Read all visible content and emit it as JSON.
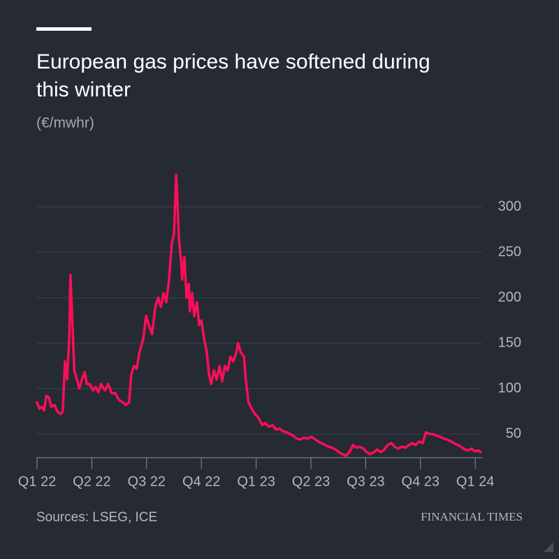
{
  "chart_data": {
    "type": "line",
    "title": [
      "European gas prices have softened during",
      "this winter"
    ],
    "subtitle": "(€/mwhr)",
    "source": "Sources: LSEG, ICE",
    "brand": "FINANCIAL TIMES",
    "x": [
      0,
      0.04,
      0.09,
      0.13,
      0.17,
      0.22,
      0.26,
      0.32,
      0.37,
      0.43,
      0.47,
      0.51,
      0.55,
      0.59,
      0.61,
      0.64,
      0.68,
      0.73,
      0.77,
      0.82,
      0.87,
      0.91,
      0.96,
      1.02,
      1.07,
      1.12,
      1.17,
      1.24,
      1.3,
      1.36,
      1.43,
      1.49,
      1.56,
      1.62,
      1.68,
      1.72,
      1.77,
      1.82,
      1.87,
      1.94,
      1.99,
      2.04,
      2.1,
      2.16,
      2.21,
      2.26,
      2.31,
      2.36,
      2.41,
      2.46,
      2.5,
      2.54,
      2.56,
      2.59,
      2.63,
      2.65,
      2.69,
      2.73,
      2.77,
      2.79,
      2.83,
      2.87,
      2.92,
      2.96,
      3.0,
      3.05,
      3.1,
      3.14,
      3.18,
      3.23,
      3.28,
      3.33,
      3.38,
      3.43,
      3.48,
      3.53,
      3.58,
      3.64,
      3.67,
      3.72,
      3.78,
      3.81,
      3.86,
      3.92,
      3.98,
      4.04,
      4.11,
      4.17,
      4.23,
      4.3,
      4.36,
      4.43,
      4.49,
      4.55,
      4.62,
      4.68,
      4.74,
      4.81,
      4.87,
      4.94,
      5.0,
      5.06,
      5.13,
      5.19,
      5.26,
      5.32,
      5.38,
      5.45,
      5.51,
      5.57,
      5.64,
      5.7,
      5.77,
      5.83,
      5.89,
      5.96,
      6.02,
      6.08,
      6.15,
      6.21,
      6.28,
      6.34,
      6.4,
      6.47,
      6.53,
      6.59,
      6.66,
      6.72,
      6.79,
      6.85,
      6.91,
      6.98,
      7.04,
      7.1,
      7.17,
      7.23,
      7.3,
      7.36,
      7.42,
      7.49,
      7.55,
      7.61,
      7.68,
      7.74,
      7.81,
      7.87,
      7.93,
      8.0,
      8.06,
      8.1
    ],
    "series": [
      {
        "name": "European gas price",
        "color": "#ff0e58",
        "values": [
          85,
          78,
          80,
          76,
          92,
          90,
          80,
          82,
          75,
          72,
          75,
          130,
          110,
          160,
          225,
          180,
          120,
          110,
          100,
          110,
          118,
          105,
          105,
          98,
          102,
          96,
          105,
          98,
          105,
          95,
          95,
          88,
          85,
          82,
          85,
          115,
          125,
          122,
          140,
          155,
          180,
          170,
          160,
          190,
          200,
          190,
          205,
          195,
          220,
          260,
          270,
          335,
          310,
          265,
          240,
          220,
          245,
          200,
          215,
          185,
          205,
          180,
          195,
          170,
          175,
          155,
          140,
          115,
          105,
          120,
          110,
          125,
          108,
          125,
          120,
          135,
          130,
          140,
          150,
          140,
          135,
          110,
          85,
          78,
          72,
          68,
          60,
          62,
          58,
          60,
          55,
          56,
          53,
          52,
          50,
          48,
          45,
          44,
          46,
          45,
          47,
          45,
          42,
          40,
          38,
          36,
          35,
          33,
          30,
          28,
          26,
          30,
          38,
          35,
          36,
          34,
          30,
          28,
          30,
          33,
          30,
          33,
          38,
          40,
          36,
          34,
          36,
          35,
          38,
          40,
          38,
          42,
          40,
          52,
          50,
          50,
          48,
          47,
          45,
          44,
          42,
          40,
          38,
          36,
          33,
          32,
          34,
          31,
          32,
          30
        ]
      }
    ],
    "xlim": [
      0,
      8.1
    ],
    "xticks": [
      {
        "value": 0,
        "label": "Q1 22"
      },
      {
        "value": 1,
        "label": "Q2 22"
      },
      {
        "value": 2,
        "label": "Q3 22"
      },
      {
        "value": 3,
        "label": "Q4 22"
      },
      {
        "value": 4,
        "label": "Q1 23"
      },
      {
        "value": 5,
        "label": "Q2 23"
      },
      {
        "value": 6,
        "label": "Q3 23"
      },
      {
        "value": 7,
        "label": "Q4 23"
      },
      {
        "value": 8,
        "label": "Q1 24"
      }
    ],
    "ylim": [
      24,
      340
    ],
    "yticks": [
      50,
      100,
      150,
      200,
      250,
      300
    ],
    "grid": true
  }
}
